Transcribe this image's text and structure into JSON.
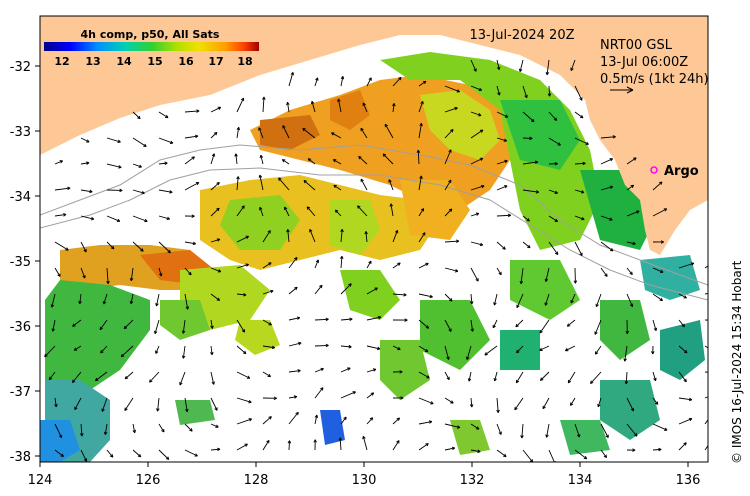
{
  "colorbar": {
    "title": "4h comp, p50, All Sats",
    "ticks": [
      "12",
      "13",
      "14",
      "15",
      "16",
      "17",
      "18"
    ],
    "colors": [
      "#00008b",
      "#0000ff",
      "#0080ff",
      "#00c0c0",
      "#00c040",
      "#80e000",
      "#e0e000",
      "#ffa000",
      "#ff4000",
      "#b00000"
    ]
  },
  "header": {
    "datetime": "13-Jul-2024 20Z",
    "product": "NRT00 GSL",
    "product_time": "13-Jul 06:00Z",
    "scale": "0.5m/s (1kt 24h)"
  },
  "marker": {
    "label": "Argo",
    "color": "#ff00ff"
  },
  "credit": "© IMOS 16-Jul-2024 15:34 Hobart",
  "axes": {
    "x_ticks": [
      "124",
      "126",
      "128",
      "130",
      "132",
      "134",
      "136"
    ],
    "y_ticks": [
      "-32",
      "-33",
      "-34",
      "-35",
      "-36",
      "-37",
      "-38"
    ]
  },
  "colors": {
    "land": "#fdc896",
    "ocean": "#ffffff",
    "contour": "#a0a0a0"
  }
}
